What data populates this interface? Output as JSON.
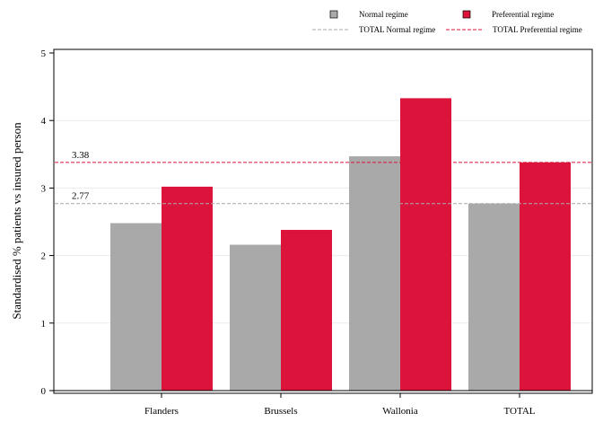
{
  "chart_data": {
    "type": "bar",
    "categories": [
      "Flanders",
      "Brussels",
      "Wallonia",
      "TOTAL"
    ],
    "series": [
      {
        "name": "Normal regime",
        "color": "#a9a9a9",
        "values": [
          2.48,
          2.16,
          3.47,
          2.77
        ]
      },
      {
        "name": "Preferential regime",
        "color": "#dc143c",
        "values": [
          3.02,
          2.38,
          4.33,
          3.38
        ]
      }
    ],
    "reference_lines": [
      {
        "name": "TOTAL Normal regime",
        "value": 2.77,
        "label": "2.77",
        "color": "#a9a9a9"
      },
      {
        "name": "TOTAL Preferential regime",
        "value": 3.38,
        "label": "3.38",
        "color": "#dc143c"
      }
    ],
    "ylabel": "Standardised % patients vs insured person",
    "xlabel": "",
    "ylim": [
      0,
      5
    ],
    "yticks": [
      "0",
      "1",
      "2",
      "3",
      "4",
      "5"
    ],
    "grid": "horizontal",
    "legend_position": "top-right"
  }
}
